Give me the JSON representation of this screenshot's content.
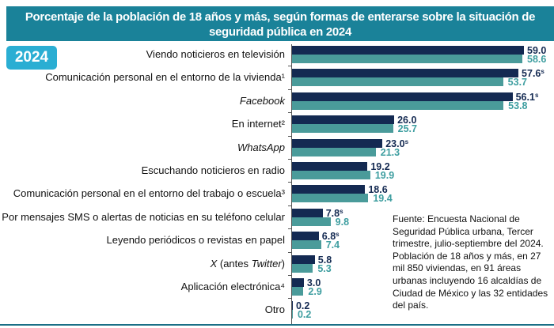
{
  "chart_data": {
    "type": "bar",
    "orientation": "horizontal",
    "title": "Porcentaje de la población de 18 años y más, según formas de enterarse sobre la situación de seguridad pública en 2024",
    "badge": "2024",
    "categories": [
      {
        "text": "Viendo noticieros en televisión",
        "sup": "",
        "italic": false
      },
      {
        "text": "Comunicación personal en el entorno de la vivienda",
        "sup": "1",
        "italic": false
      },
      {
        "text": "Facebook",
        "sup": "",
        "italic": true
      },
      {
        "text": "En internet",
        "sup": "2",
        "italic": false
      },
      {
        "text": "WhatsApp",
        "sup": "",
        "italic": true
      },
      {
        "text": "Escuchando noticieros en radio",
        "sup": "",
        "italic": false
      },
      {
        "text": "Comunicación personal en el entorno del trabajo o escuela",
        "sup": "3",
        "italic": false
      },
      {
        "text": "Por mensajes SMS o alertas de noticias en su teléfono celular",
        "sup": "",
        "italic": false
      },
      {
        "text": "Leyendo periódicos o revistas en papel",
        "sup": "",
        "italic": false
      },
      {
        "text": "X (antes Twitter)",
        "sup": "",
        "italic": false
      },
      {
        "text": "Aplicación electrónica",
        "sup": "4",
        "italic": false
      },
      {
        "text": "Otro",
        "sup": "",
        "italic": false
      }
    ],
    "series": [
      {
        "key": "a",
        "color": "#142a52",
        "values": [
          59.0,
          57.6,
          56.1,
          26.0,
          23.0,
          19.2,
          18.6,
          7.8,
          6.8,
          5.8,
          3.0,
          0.2
        ],
        "marks": [
          "",
          "s",
          "s",
          "",
          "s",
          "",
          "",
          "s",
          "s",
          "",
          "",
          ""
        ]
      },
      {
        "key": "b",
        "color": "#4a9b9a",
        "values": [
          58.6,
          53.7,
          53.8,
          25.7,
          21.3,
          19.9,
          19.4,
          9.8,
          7.4,
          5.3,
          2.9,
          0.2
        ],
        "marks": [
          "",
          "",
          "",
          "",
          "",
          "",
          "",
          "",
          "",
          "",
          "",
          ""
        ]
      }
    ],
    "xlim": [
      0,
      60
    ],
    "grid": false,
    "legend": "none",
    "note": "Fuente: Encuesta Nacional de Seguridad Pública urbana, Tercer trimestre, julio-septiembre del 2024. Población de 18 años y más, en 27 mil 850 viviendas, en 91 áreas urbanas incluyendo 16 alcaldías de Ciudad de México y las 32  entidades del país."
  }
}
